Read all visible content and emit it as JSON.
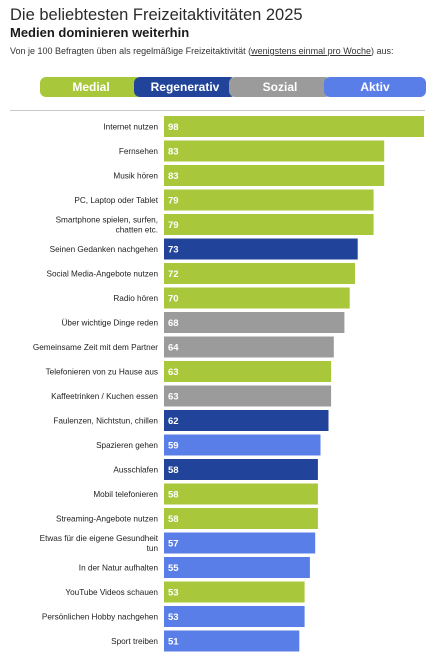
{
  "header": {
    "title": "Die beliebtesten Freizeitaktivitäten 2025",
    "subtitle": "Medien dominieren weiterhin",
    "note_prefix": "Von je 100 Befragten üben als regelmäßige Freizeitaktivität (",
    "note_underlined": "wenigstens einmal pro Woche",
    "note_suffix": ") aus:"
  },
  "legend": [
    {
      "label": "Medial",
      "color": "#a9c73a"
    },
    {
      "label": "Regenerativ",
      "color": "#21449a"
    },
    {
      "label": "Sozial",
      "color": "#9b9b9b"
    },
    {
      "label": "Aktiv",
      "color": "#5a7ee8"
    }
  ],
  "chart_data": {
    "type": "bar",
    "orientation": "horizontal",
    "categories": [
      "Internet nutzen",
      "Fernsehen",
      "Musik hören",
      "PC, Laptop oder Tablet",
      "Smartphone spielen, surfen, chatten etc.",
      "Seinen Gedanken nachgehen",
      "Social Media-Angebote nutzen",
      "Radio hören",
      "Über wichtige Dinge reden",
      "Gemeinsame Zeit mit dem Partner",
      "Telefonieren von zu Hause aus",
      "Kaffeetrinken / Kuchen essen",
      "Faulenzen, Nichtstun, chillen",
      "Spazieren gehen",
      "Ausschlafen",
      "Mobil telefonieren",
      "Streaming-Angebote nutzen",
      "Etwas für die eigene Gesundheit tun",
      "In der Natur aufhalten",
      "YouTube Videos schauen",
      "Persönlichen Hobby nachgehen",
      "Sport treiben"
    ],
    "values": [
      98,
      83,
      83,
      79,
      79,
      73,
      72,
      70,
      68,
      64,
      63,
      63,
      62,
      59,
      58,
      58,
      58,
      57,
      55,
      53,
      53,
      51
    ],
    "groups": [
      "Medial",
      "Medial",
      "Medial",
      "Medial",
      "Medial",
      "Regenerativ",
      "Medial",
      "Medial",
      "Sozial",
      "Sozial",
      "Medial",
      "Sozial",
      "Regenerativ",
      "Aktiv",
      "Regenerativ",
      "Medial",
      "Medial",
      "Aktiv",
      "Aktiv",
      "Medial",
      "Aktiv",
      "Aktiv"
    ],
    "xlim": [
      0,
      100
    ]
  }
}
